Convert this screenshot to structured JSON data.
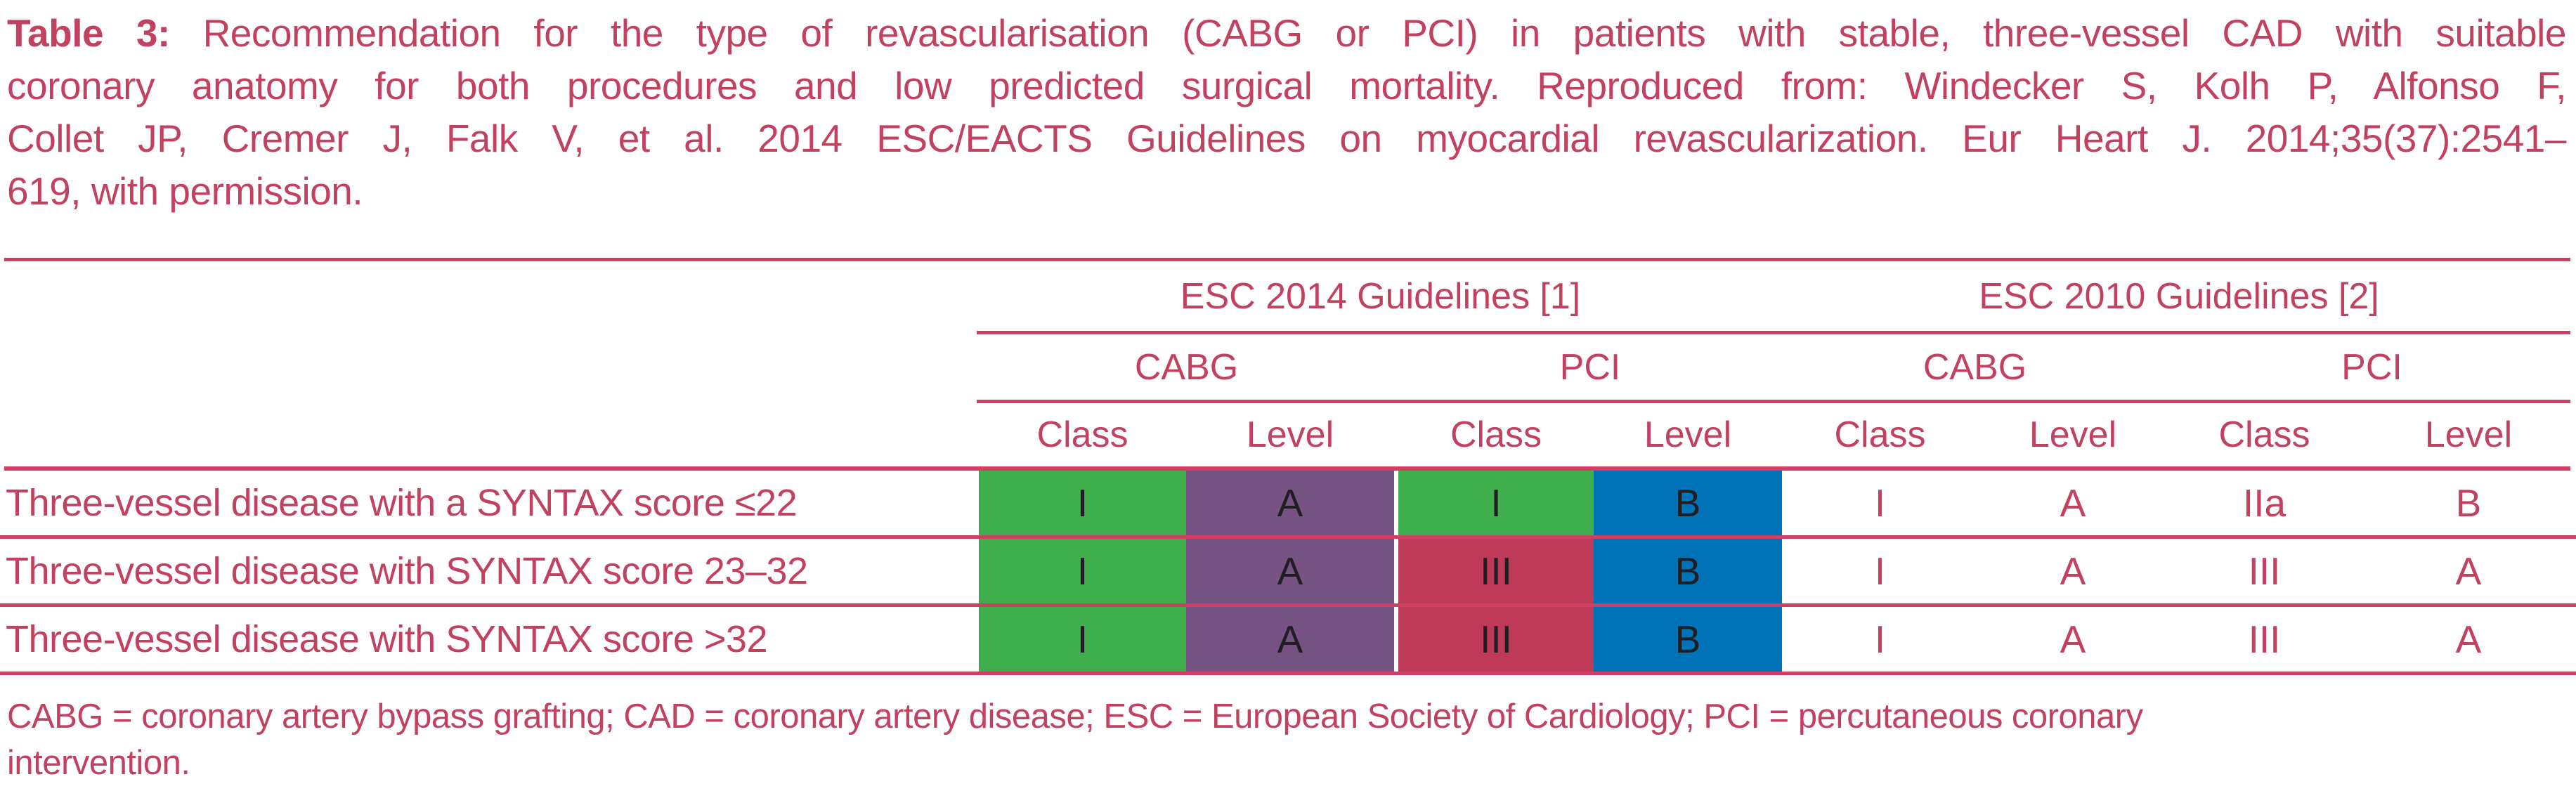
{
  "title": {
    "label": "Table 3:",
    "lines": [
      "Recommendation for the type of revascularisation (CABG or PCI) in patients with stable, three-vessel CAD with suitable",
      "coronary anatomy for both procedures and low predicted surgical mortality. Reproduced from: Windecker S, Kolh P, Alfonso F,",
      "Collet JP, Cremer J, Falk V, et al. 2014 ESC/EACTS Guidelines on myocardial revascularization. Eur Heart J. 2014;35(37):2541–",
      "619, with permission."
    ]
  },
  "table": {
    "group_headers": [
      {
        "label": "ESC 2014 Guidelines [1]"
      },
      {
        "label": "ESC 2010 Guidelines [2]"
      }
    ],
    "subgroup_headers": [
      "CABG",
      "PCI",
      "CABG",
      "PCI"
    ],
    "column_headers": [
      "Class",
      "Level",
      "Class",
      "Level",
      "Class",
      "Level",
      "Class",
      "Level"
    ],
    "rows": [
      {
        "label": "Three-vessel disease with a SYNTAX score ≤22",
        "cells": [
          {
            "value": "I",
            "bg": "green"
          },
          {
            "value": "A",
            "bg": "purple"
          },
          {
            "value": "I",
            "bg": "green"
          },
          {
            "value": "B",
            "bg": "blue"
          },
          {
            "value": "I"
          },
          {
            "value": "A"
          },
          {
            "value": "IIa"
          },
          {
            "value": "B"
          }
        ]
      },
      {
        "label": "Three-vessel disease with SYNTAX score 23–32",
        "cells": [
          {
            "value": "I",
            "bg": "green"
          },
          {
            "value": "A",
            "bg": "purple"
          },
          {
            "value": "III",
            "bg": "red"
          },
          {
            "value": "B",
            "bg": "blue"
          },
          {
            "value": "I"
          },
          {
            "value": "A"
          },
          {
            "value": "III"
          },
          {
            "value": "A"
          }
        ]
      },
      {
        "label": "Three-vessel disease with SYNTAX score >32",
        "cells": [
          {
            "value": "I",
            "bg": "green"
          },
          {
            "value": "A",
            "bg": "purple"
          },
          {
            "value": "III",
            "bg": "red"
          },
          {
            "value": "B",
            "bg": "blue"
          },
          {
            "value": "I"
          },
          {
            "value": "A"
          },
          {
            "value": "III"
          },
          {
            "value": "A"
          }
        ]
      }
    ]
  },
  "footnote": {
    "lines": [
      "CABG = coronary artery bypass grafting; CAD = coronary artery disease; ESC = European Society of Cardiology; PCI = percutaneous coronary",
      "intervention."
    ]
  },
  "colors": {
    "accent-text": "#c2415f",
    "accent-line": "#d23e62",
    "green": "#3fae4c",
    "purple": "#765383",
    "red": "#bf3a58",
    "blue": "#0072b8",
    "dark": "#1f1f23"
  }
}
